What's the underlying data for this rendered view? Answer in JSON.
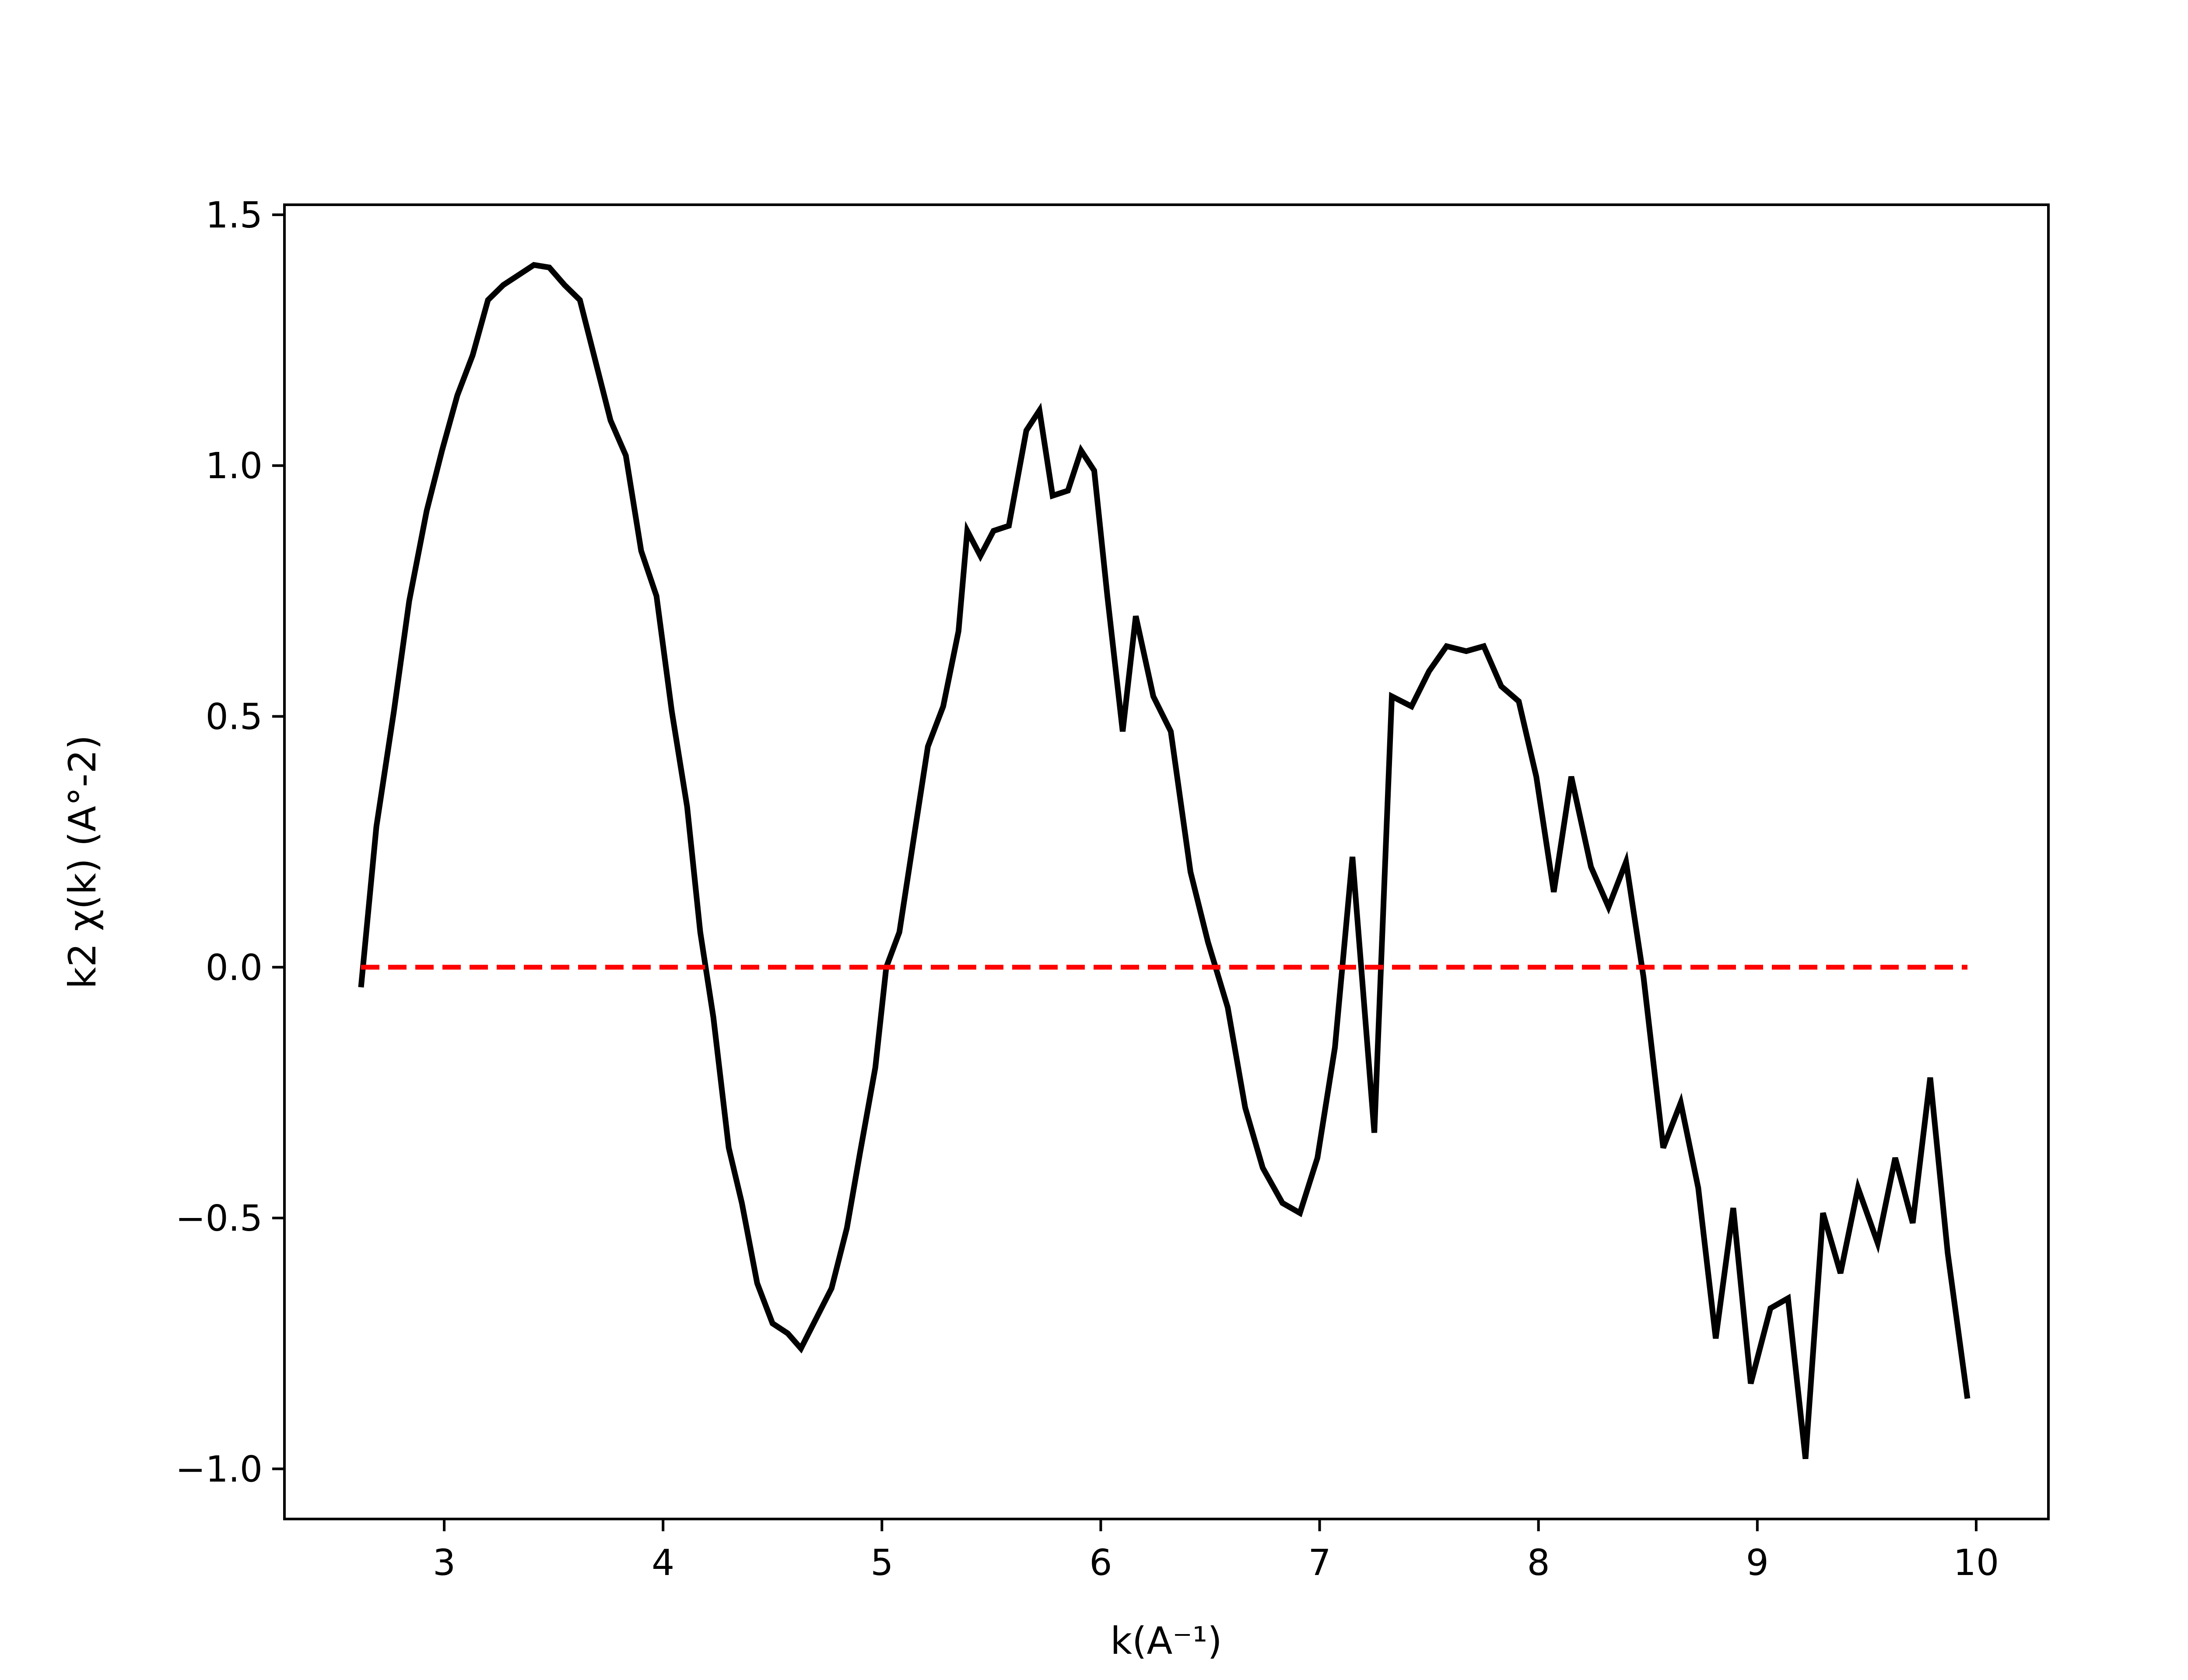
{
  "chart_data": {
    "type": "line",
    "title": "",
    "xlabel": "k(A⁻¹)",
    "ylabel": "k2 χ(k) (A°-2)",
    "xlim": [
      2.27,
      10.33
    ],
    "ylim": [
      -1.1,
      1.52
    ],
    "xticks": [
      3,
      4,
      5,
      6,
      7,
      8,
      9,
      10
    ],
    "xtick_labels": [
      "3",
      "4",
      "5",
      "6",
      "7",
      "8",
      "9",
      "10"
    ],
    "yticks": [
      -1.0,
      -0.5,
      0.0,
      0.5,
      1.0,
      1.5
    ],
    "ytick_labels": [
      "−1.0",
      "−0.5",
      "0.0",
      "0.5",
      "1.0",
      "1.5"
    ],
    "grid": false,
    "series": [
      {
        "style": "solid",
        "color": "#000000",
        "x": [
          2.62,
          2.69,
          2.77,
          2.84,
          2.92,
          2.99,
          3.06,
          3.13,
          3.2,
          3.27,
          3.34,
          3.41,
          3.48,
          3.55,
          3.62,
          3.69,
          3.76,
          3.83,
          3.9,
          3.97,
          4.04,
          4.11,
          4.17,
          4.23,
          4.3,
          4.36,
          4.43,
          4.5,
          4.57,
          4.63,
          4.7,
          4.77,
          4.84,
          4.9,
          4.97,
          5.02,
          5.08,
          5.15,
          5.21,
          5.28,
          5.35,
          5.39,
          5.45,
          5.51,
          5.58,
          5.66,
          5.72,
          5.78,
          5.85,
          5.91,
          5.97,
          6.03,
          6.1,
          6.16,
          6.24,
          6.32,
          6.41,
          6.49,
          6.58,
          6.66,
          6.74,
          6.83,
          6.91,
          6.99,
          7.07,
          7.15,
          7.25,
          7.33,
          7.42,
          7.5,
          7.58,
          7.67,
          7.75,
          7.83,
          7.91,
          7.99,
          8.07,
          8.15,
          8.24,
          8.32,
          8.4,
          8.48,
          8.57,
          8.65,
          8.73,
          8.81,
          8.89,
          8.97,
          9.06,
          9.14,
          9.22,
          9.3,
          9.38,
          9.46,
          9.55,
          9.63,
          9.71,
          9.79,
          9.87,
          9.96
        ],
        "y": [
          -0.04,
          0.28,
          0.51,
          0.73,
          0.91,
          1.03,
          1.14,
          1.22,
          1.33,
          1.36,
          1.38,
          1.4,
          1.395,
          1.36,
          1.33,
          1.21,
          1.09,
          1.02,
          0.83,
          0.74,
          0.51,
          0.32,
          0.07,
          -0.1,
          -0.36,
          -0.47,
          -0.63,
          -0.71,
          -0.73,
          -0.76,
          -0.7,
          -0.64,
          -0.52,
          -0.37,
          -0.2,
          0.0,
          0.07,
          0.27,
          0.44,
          0.52,
          0.67,
          0.87,
          0.82,
          0.87,
          0.88,
          1.07,
          1.11,
          0.94,
          0.95,
          1.03,
          0.99,
          0.74,
          0.47,
          0.7,
          0.54,
          0.47,
          0.19,
          0.05,
          -0.08,
          -0.28,
          -0.4,
          -0.47,
          -0.49,
          -0.38,
          -0.16,
          0.22,
          -0.33,
          0.54,
          0.52,
          0.59,
          0.64,
          0.63,
          0.64,
          0.56,
          0.53,
          0.38,
          0.15,
          0.38,
          0.2,
          0.12,
          0.21,
          -0.02,
          -0.36,
          -0.27,
          -0.44,
          -0.74,
          -0.48,
          -0.83,
          -0.68,
          -0.66,
          -0.98,
          -0.49,
          -0.61,
          -0.44,
          -0.55,
          -0.38,
          -0.51,
          -0.22,
          -0.57,
          -0.86
        ]
      },
      {
        "style": "dashed",
        "color": "#ff0000",
        "x": [
          2.62,
          9.96
        ],
        "y": [
          0.0,
          0.0
        ]
      }
    ]
  }
}
